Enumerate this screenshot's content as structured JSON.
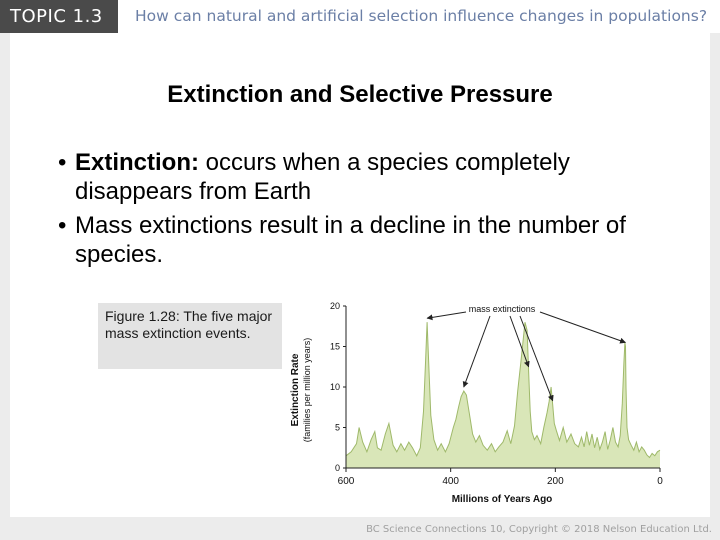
{
  "header": {
    "topic": "TOPIC 1.3",
    "question": "How can natural and artificial selection influence changes in populations?"
  },
  "slide": {
    "title": "Extinction and Selective Pressure",
    "bullets": [
      {
        "bold": "Extinction:",
        "text": " occurs when a species completely disappears from Earth"
      },
      {
        "bold": "",
        "text": "Mass extinctions result in a decline in the number of species."
      }
    ],
    "caption": "Figure 1.28: The five major mass extinction events."
  },
  "chart_data": {
    "type": "area",
    "xlabel": "Millions of Years Ago",
    "ylabel": "Extinction Rate",
    "ylabel_sub": "(families per million years)",
    "xlim": [
      600,
      0
    ],
    "ylim": [
      0,
      20
    ],
    "xticks": [
      600,
      400,
      200,
      0
    ],
    "xtick_labels": [
      "600",
      "400",
      "200",
      "0"
    ],
    "yticks": [
      0,
      5,
      10,
      15,
      20
    ],
    "ytick_labels": [
      "0",
      "5",
      "10",
      "15",
      "20"
    ],
    "annotation": "mass extinctions",
    "annotation_targets": [
      445,
      375,
      251,
      205,
      66
    ],
    "fill_color": "#d9e6b8",
    "line_color": "#9fb96a",
    "x": [
      600,
      590,
      580,
      575,
      568,
      560,
      552,
      545,
      540,
      533,
      525,
      518,
      510,
      503,
      495,
      488,
      480,
      473,
      465,
      458,
      452,
      448,
      445,
      442,
      438,
      432,
      425,
      418,
      410,
      403,
      395,
      390,
      385,
      380,
      375,
      370,
      365,
      358,
      352,
      345,
      338,
      330,
      322,
      315,
      308,
      300,
      292,
      285,
      278,
      272,
      266,
      262,
      258,
      254,
      251,
      248,
      245,
      240,
      235,
      228,
      222,
      216,
      212,
      208,
      205,
      202,
      198,
      192,
      185,
      178,
      170,
      163,
      156,
      150,
      145,
      140,
      135,
      130,
      125,
      120,
      115,
      110,
      105,
      100,
      95,
      90,
      85,
      80,
      76,
      72,
      69,
      67,
      66,
      65,
      63,
      60,
      55,
      50,
      45,
      40,
      35,
      30,
      25,
      20,
      15,
      10,
      5,
      0
    ],
    "y": [
      1.5,
      2.0,
      3.0,
      5.0,
      3.2,
      2.0,
      3.5,
      4.5,
      2.5,
      2.2,
      4.2,
      5.5,
      2.8,
      2.0,
      3.0,
      2.2,
      3.2,
      2.5,
      1.5,
      2.5,
      7.0,
      13.0,
      18.0,
      13.0,
      6.5,
      3.5,
      2.2,
      3.0,
      2.0,
      3.0,
      5.0,
      6.0,
      7.5,
      8.8,
      9.5,
      9.0,
      7.0,
      4.2,
      3.2,
      4.0,
      2.8,
      2.2,
      3.0,
      2.0,
      2.6,
      3.2,
      4.6,
      3.0,
      5.2,
      9.5,
      13.0,
      15.5,
      18.0,
      17.0,
      12.0,
      7.0,
      4.5,
      3.5,
      4.0,
      3.0,
      5.0,
      6.8,
      8.2,
      10.0,
      7.8,
      5.5,
      4.6,
      3.4,
      5.0,
      3.2,
      4.2,
      3.0,
      2.6,
      3.8,
      2.6,
      4.5,
      2.8,
      4.2,
      2.5,
      3.8,
      2.3,
      3.2,
      4.5,
      2.3,
      3.5,
      5.0,
      3.2,
      2.6,
      4.0,
      8.0,
      13.0,
      15.5,
      15.0,
      10.0,
      5.0,
      3.5,
      2.8,
      2.2,
      3.2,
      2.0,
      2.6,
      2.2,
      1.6,
      1.3,
      1.8,
      1.5,
      2.0,
      2.2
    ]
  },
  "footer": "BC Science Connections 10, Copyright © 2018 Nelson Education Ltd."
}
